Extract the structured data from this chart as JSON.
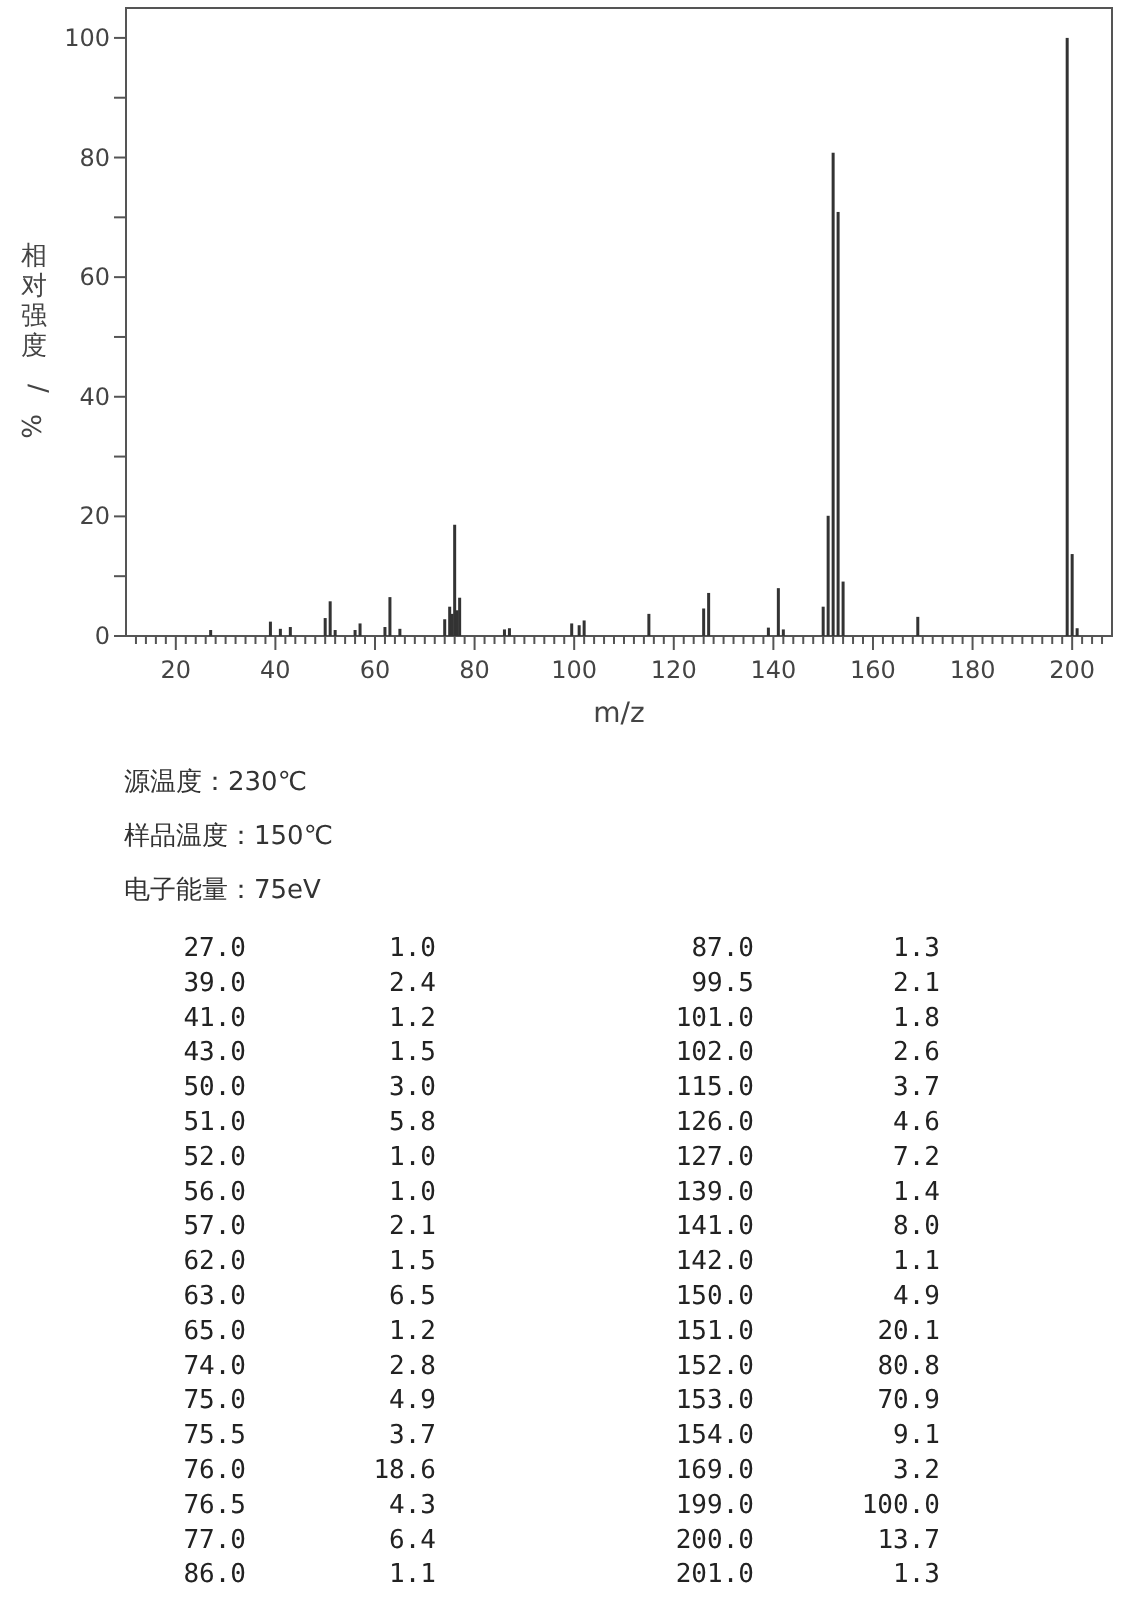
{
  "chart_data": [
    {
      "type": "bar",
      "xlabel": "m/z",
      "ylabel": "相对强度/%",
      "color": "#333333",
      "annotations": [
        "源温度：230℃",
        "样品温度：150℃",
        "电子能量：75eV"
      ],
      "x": [
        27,
        39,
        41,
        43,
        50,
        51,
        52,
        56,
        57,
        62,
        63,
        65,
        74,
        75,
        75.5,
        76,
        76.5,
        77,
        86,
        87,
        99.5,
        101,
        102,
        115,
        126,
        127,
        139,
        141,
        142,
        150,
        151,
        152,
        153,
        154,
        169,
        199,
        200,
        201
      ],
      "values": [
        1.0,
        2.4,
        1.2,
        1.5,
        3.0,
        5.8,
        1.0,
        1.0,
        2.1,
        1.5,
        6.5,
        1.2,
        2.8,
        4.9,
        3.7,
        18.6,
        4.3,
        6.4,
        1.1,
        1.3,
        2.1,
        1.8,
        2.6,
        3.7,
        4.6,
        7.2,
        1.4,
        8.0,
        1.1,
        4.9,
        20.1,
        80.8,
        70.9,
        9.1,
        3.2,
        100.0,
        13.7,
        1.3
      ],
      "xlim": [
        10,
        208
      ],
      "ylim": [
        0,
        105
      ],
      "yticks": [
        0,
        {
          "value": 10,
          "label": null
        },
        20,
        {
          "value": 30,
          "label": null
        },
        40,
        {
          "value": 50,
          "label": null
        },
        60,
        {
          "value": 70,
          "label": null
        },
        80,
        {
          "value": 90,
          "label": null
        },
        100
      ],
      "xticks": [
        {
          "value": 12,
          "label": null
        },
        {
          "value": 14,
          "label": null
        },
        {
          "value": 16,
          "label": null
        },
        {
          "value": 18,
          "label": null
        },
        20,
        {
          "value": 22,
          "label": null
        },
        {
          "value": 24,
          "label": null
        },
        {
          "value": 26,
          "label": null
        },
        {
          "value": 28,
          "label": null
        },
        {
          "value": 30,
          "label": null
        },
        {
          "value": 32,
          "label": null
        },
        {
          "value": 34,
          "label": null
        },
        {
          "value": 36,
          "label": null
        },
        {
          "value": 38,
          "label": null
        },
        40,
        {
          "value": 42,
          "label": null
        },
        {
          "value": 44,
          "label": null
        },
        {
          "value": 46,
          "label": null
        },
        {
          "value": 48,
          "label": null
        },
        {
          "value": 50,
          "label": null
        },
        {
          "value": 52,
          "label": null
        },
        {
          "value": 54,
          "label": null
        },
        {
          "value": 56,
          "label": null
        },
        {
          "value": 58,
          "label": null
        },
        60,
        {
          "value": 62,
          "label": null
        },
        {
          "value": 64,
          "label": null
        },
        {
          "value": 66,
          "label": null
        },
        {
          "value": 68,
          "label": null
        },
        {
          "value": 70,
          "label": null
        },
        {
          "value": 72,
          "label": null
        },
        {
          "value": 74,
          "label": null
        },
        {
          "value": 76,
          "label": null
        },
        {
          "value": 78,
          "label": null
        },
        80,
        {
          "value": 82,
          "label": null
        },
        {
          "value": 84,
          "label": null
        },
        {
          "value": 86,
          "label": null
        },
        {
          "value": 88,
          "label": null
        },
        {
          "value": 90,
          "label": null
        },
        {
          "value": 92,
          "label": null
        },
        {
          "value": 94,
          "label": null
        },
        {
          "value": 96,
          "label": null
        },
        {
          "value": 98,
          "label": null
        },
        100,
        {
          "value": 102,
          "label": null
        },
        {
          "value": 104,
          "label": null
        },
        {
          "value": 106,
          "label": null
        },
        {
          "value": 108,
          "label": null
        },
        {
          "value": 110,
          "label": null
        },
        {
          "value": 112,
          "label": null
        },
        {
          "value": 114,
          "label": null
        },
        {
          "value": 116,
          "label": null
        },
        {
          "value": 118,
          "label": null
        },
        120,
        {
          "value": 122,
          "label": null
        },
        {
          "value": 124,
          "label": null
        },
        {
          "value": 126,
          "label": null
        },
        {
          "value": 128,
          "label": null
        },
        {
          "value": 130,
          "label": null
        },
        {
          "value": 132,
          "label": null
        },
        {
          "value": 134,
          "label": null
        },
        {
          "value": 136,
          "label": null
        },
        {
          "value": 138,
          "label": null
        },
        140,
        {
          "value": 142,
          "label": null
        },
        {
          "value": 144,
          "label": null
        },
        {
          "value": 146,
          "label": null
        },
        {
          "value": 148,
          "label": null
        },
        {
          "value": 150,
          "label": null
        },
        {
          "value": 152,
          "label": null
        },
        {
          "value": 154,
          "label": null
        },
        {
          "value": 156,
          "label": null
        },
        {
          "value": 158,
          "label": null
        },
        160,
        {
          "value": 162,
          "label": null
        },
        {
          "value": 164,
          "label": null
        },
        {
          "value": 166,
          "label": null
        },
        {
          "value": 168,
          "label": null
        },
        {
          "value": 170,
          "label": null
        },
        {
          "value": 172,
          "label": null
        },
        {
          "value": 174,
          "label": null
        },
        {
          "value": 176,
          "label": null
        },
        {
          "value": 178,
          "label": null
        },
        180,
        {
          "value": 182,
          "label": null
        },
        {
          "value": 184,
          "label": null
        },
        {
          "value": 186,
          "label": null
        },
        {
          "value": 188,
          "label": null
        },
        {
          "value": 190,
          "label": null
        },
        {
          "value": 192,
          "label": null
        },
        {
          "value": 194,
          "label": null
        },
        {
          "value": 196,
          "label": null
        },
        {
          "value": 198,
          "label": null
        },
        200,
        {
          "value": 202,
          "label": null
        },
        {
          "value": 204,
          "label": null
        },
        {
          "value": 206,
          "label": null
        }
      ]
    },
    {
      "type": "other",
      "annotations": [
        "27.0",
        "1.0",
        "87.0",
        "1.3",
        "39.0",
        "2.4",
        "99.5",
        "2.1",
        "41.0",
        "1.2",
        "101.0",
        "1.8",
        "43.0",
        "1.5",
        "102.0",
        "2.6",
        "50.0",
        "3.0",
        "115.0",
        "3.7",
        "51.0",
        "5.8",
        "126.0",
        "4.6",
        "52.0",
        "1.0",
        "127.0",
        "7.2",
        "56.0",
        "1.0",
        "139.0",
        "1.4",
        "57.0",
        "2.1",
        "141.0",
        "8.0",
        "62.0",
        "1.5",
        "142.0",
        "1.1",
        "63.0",
        "6.5",
        "150.0",
        "4.9",
        "65.0",
        "1.2",
        "151.0",
        "20.1",
        "74.0",
        "2.8",
        "152.0",
        "80.8",
        "75.0",
        "4.9",
        "153.0",
        "70.9",
        "75.5",
        "3.7",
        "154.0",
        "9.1",
        "76.0",
        "18.6",
        "169.0",
        "3.2",
        "76.5",
        "4.3",
        "199.0",
        "100.0",
        "77.0",
        "6.4",
        "200.0",
        "13.7",
        "86.0",
        "1.1",
        "201.0",
        "1.3"
      ]
    }
  ]
}
